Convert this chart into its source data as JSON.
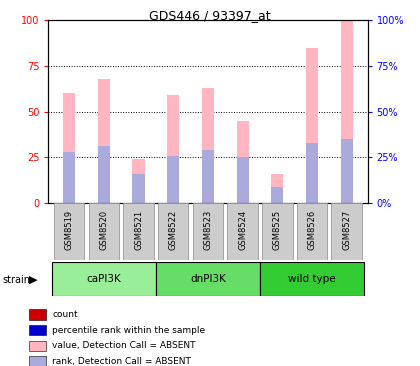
{
  "title": "GDS446 / 93397_at",
  "samples": [
    "GSM8519",
    "GSM8520",
    "GSM8521",
    "GSM8522",
    "GSM8523",
    "GSM8524",
    "GSM8525",
    "GSM8526",
    "GSM8527"
  ],
  "value_absent": [
    60,
    68,
    24,
    59,
    63,
    45,
    16,
    85,
    100
  ],
  "rank_absent": [
    28,
    31,
    16,
    26,
    29,
    25,
    9,
    33,
    35
  ],
  "groups": [
    {
      "label": "caPI3K",
      "indices": [
        0,
        1,
        2
      ]
    },
    {
      "label": "dnPI3K",
      "indices": [
        3,
        4,
        5
      ]
    },
    {
      "label": "wild type",
      "indices": [
        6,
        7,
        8
      ]
    }
  ],
  "bar_width": 0.35,
  "ylim": [
    0,
    100
  ],
  "yticks": [
    0,
    25,
    50,
    75,
    100
  ],
  "color_value_absent": "#FFB6C1",
  "color_rank_absent": "#AAAADD",
  "color_count": "#CC0000",
  "color_percentile": "#0000CC",
  "group_color_caPI3K": "#99EE99",
  "group_color_dnPI3K": "#66DD66",
  "group_color_wildtype": "#33CC33",
  "legend_items": [
    {
      "color": "#CC0000",
      "label": "count"
    },
    {
      "color": "#0000CC",
      "label": "percentile rank within the sample"
    },
    {
      "color": "#FFB6C1",
      "label": "value, Detection Call = ABSENT"
    },
    {
      "color": "#AAAADD",
      "label": "rank, Detection Call = ABSENT"
    }
  ]
}
